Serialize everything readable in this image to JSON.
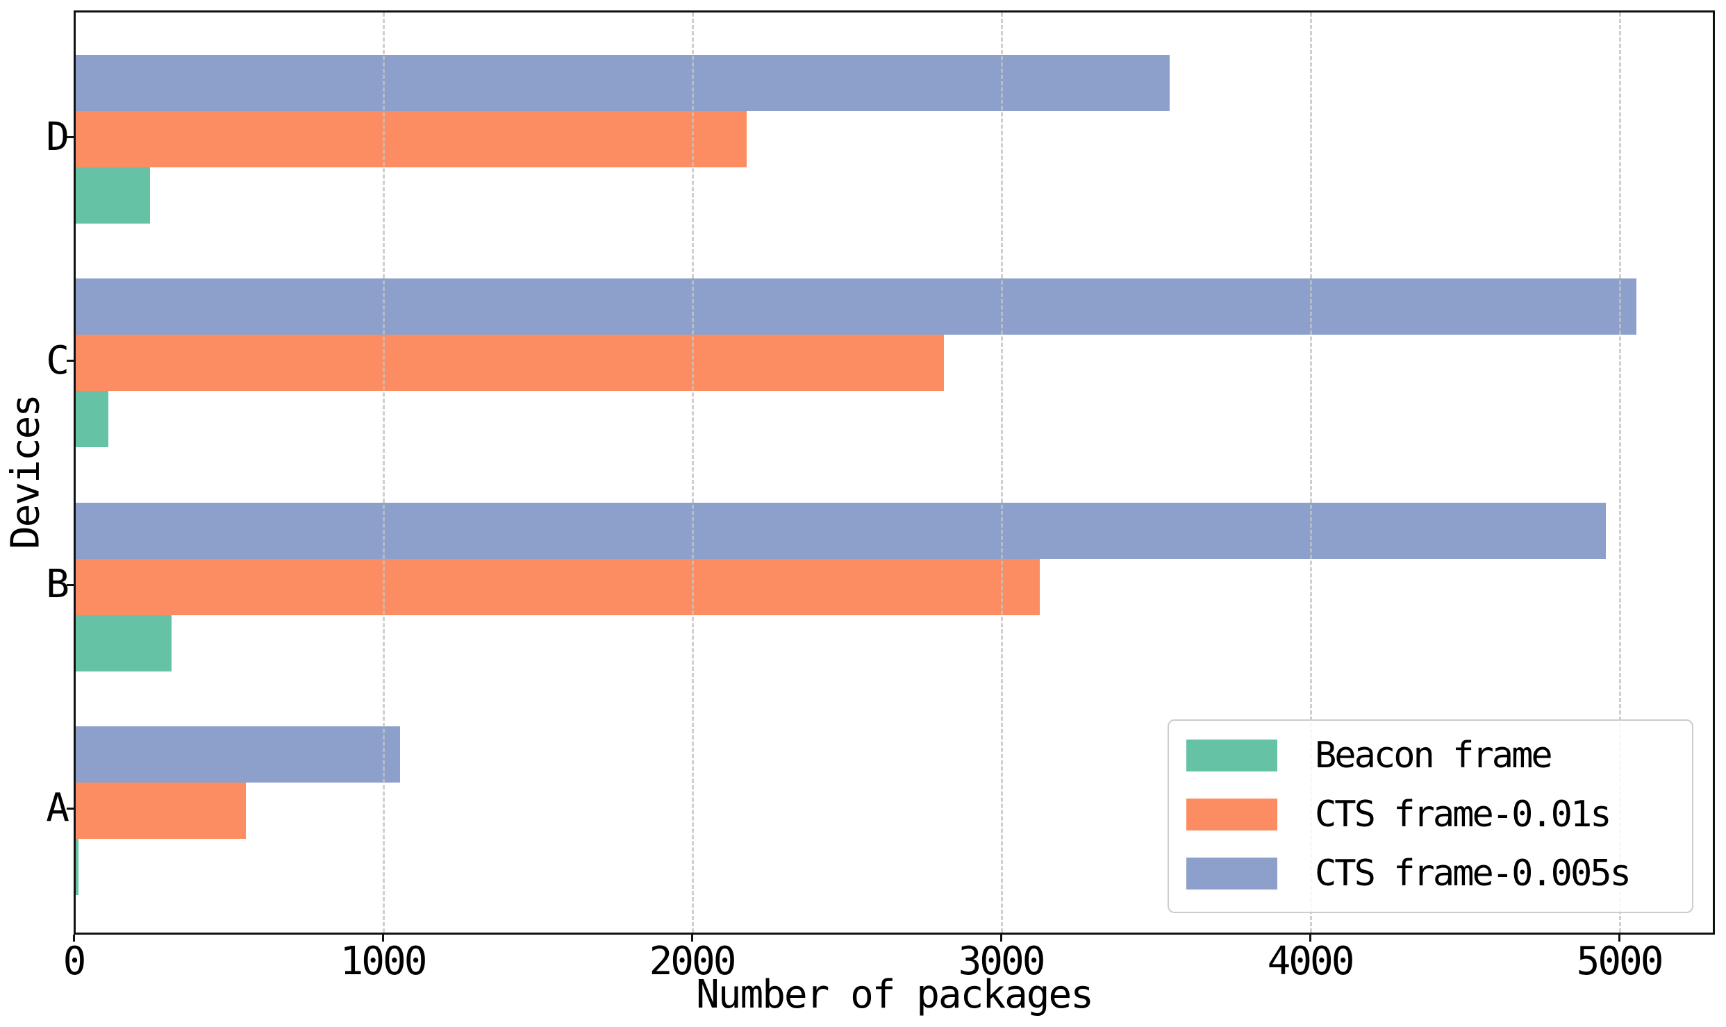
{
  "chart_data": {
    "type": "bar",
    "orientation": "horizontal",
    "title": "",
    "xlabel": "Number of packages",
    "ylabel": "Devices",
    "categories": [
      "A",
      "B",
      "C",
      "D"
    ],
    "series": [
      {
        "name": "Beacon frame",
        "color": "#66c2a5",
        "values": [
          10,
          310,
          105,
          240
        ]
      },
      {
        "name": "CTS frame-0.01s",
        "color": "#fc8d62",
        "values": [
          550,
          3120,
          2810,
          2170
        ]
      },
      {
        "name": "CTS frame-0.005s",
        "color": "#8da0cb",
        "values": [
          1050,
          4950,
          5050,
          3540
        ]
      }
    ],
    "xticks": [
      0,
      1000,
      2000,
      3000,
      4000,
      5000
    ],
    "xlim": [
      0,
      5310
    ],
    "grid": "vertical-dashed",
    "legend_position": "lower right",
    "category_order_top_to_bottom": [
      "D",
      "C",
      "B",
      "A"
    ],
    "series_order_top_to_bottom_within_group": [
      "CTS frame-0.005s",
      "CTS frame-0.01s",
      "Beacon frame"
    ]
  },
  "colors": {
    "grid": "#c3c3c3",
    "spine": "#111111",
    "text": "#000000",
    "legend_border": "#cccccc",
    "background": "#ffffff"
  }
}
